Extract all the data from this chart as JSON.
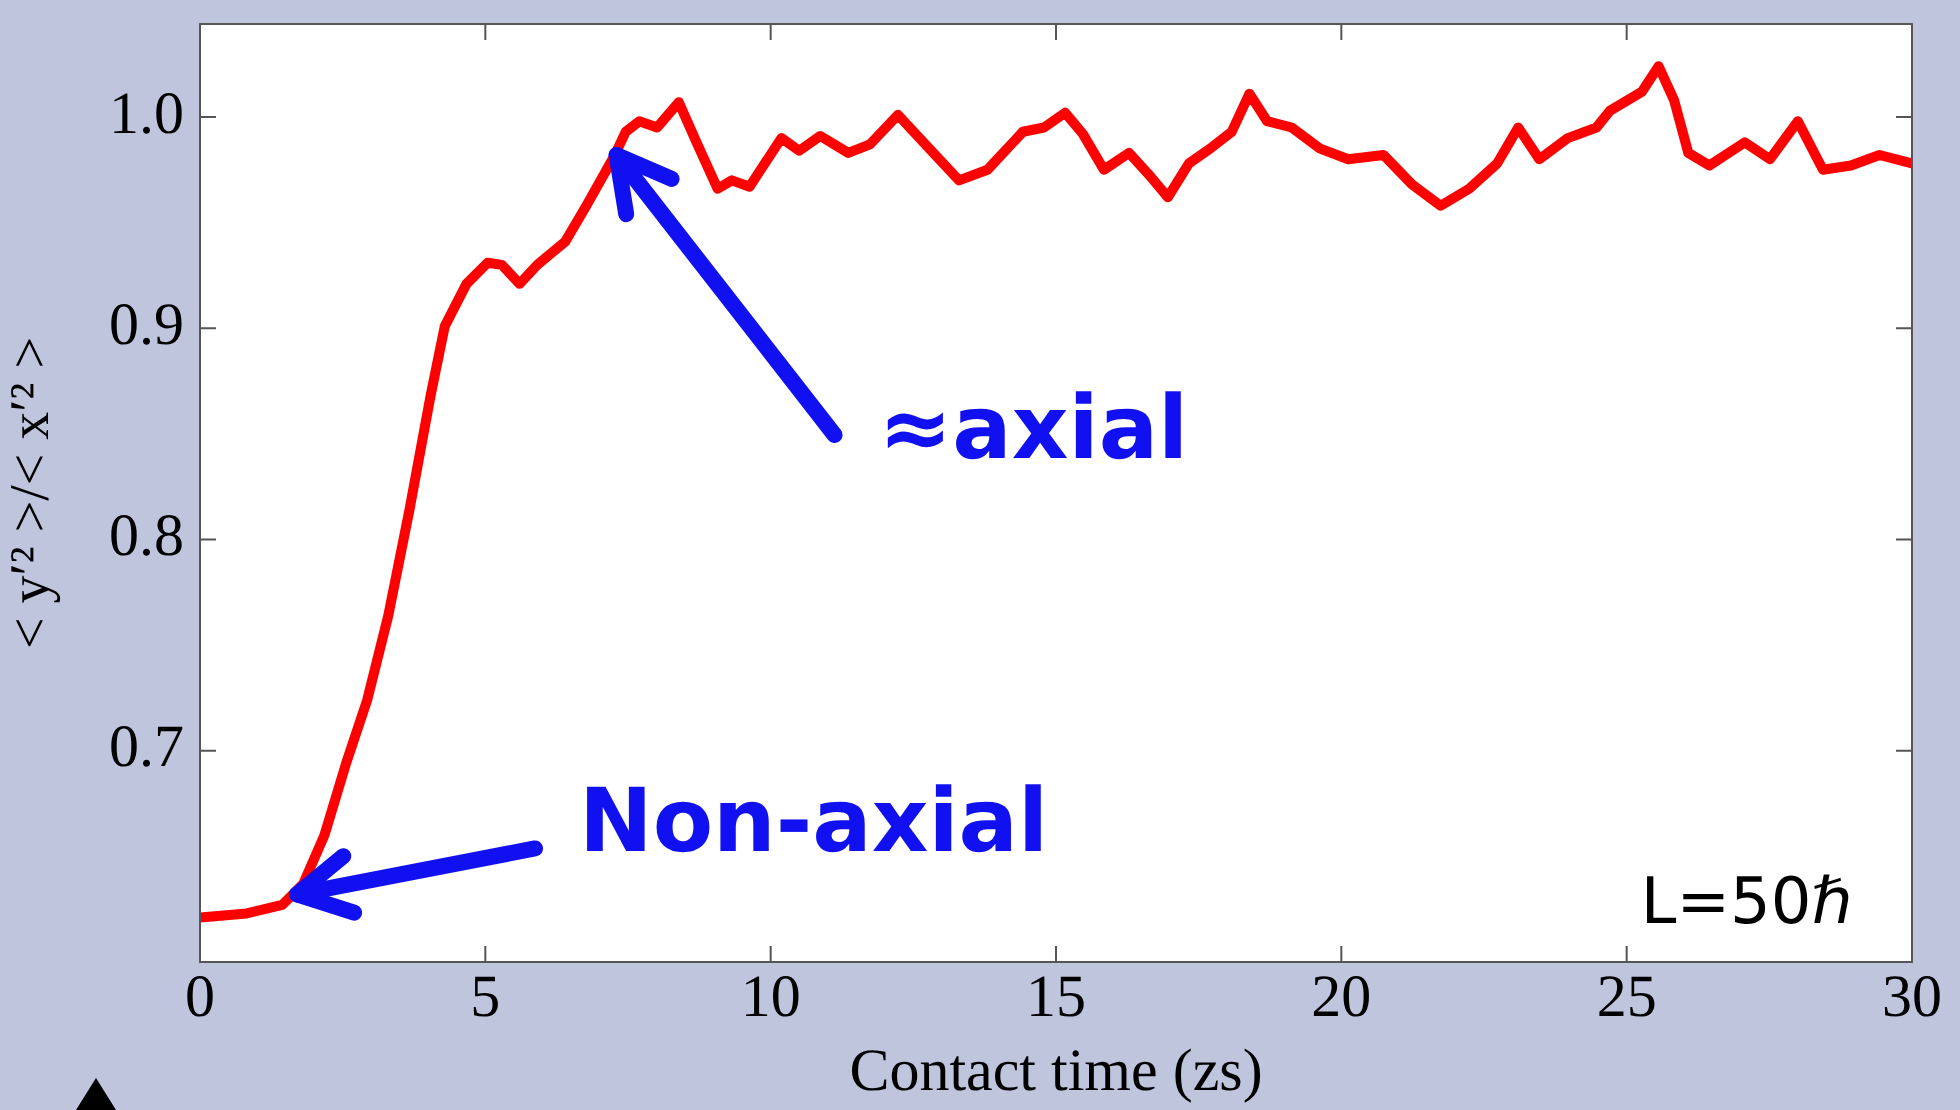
{
  "chart_data": {
    "type": "line",
    "xlabel": "Contact time (zs)",
    "ylabel": "< y′² >/< x′² >",
    "xlim": [
      0,
      30
    ],
    "xticks": [
      0,
      5,
      10,
      15,
      20,
      25,
      30
    ],
    "ylim": [
      0.6,
      1.044
    ],
    "yticks": [
      {
        "value": 0.7,
        "label": "0.7"
      },
      {
        "value": 0.8,
        "label": "0.8"
      },
      {
        "value": 0.9,
        "label": "0.9"
      },
      {
        "value": 1.0,
        "label": "1.0"
      }
    ],
    "grid": false,
    "legend": false,
    "marker": "none",
    "line_style": "solid",
    "series": [
      {
        "color": "#ff0000",
        "x": [
          0,
          0.82,
          1.44,
          1.81,
          2.18,
          2.56,
          2.93,
          3.3,
          3.67,
          4.04,
          4.29,
          4.67,
          5.04,
          5.29,
          5.6,
          5.91,
          6.4,
          6.77,
          7.27,
          7.46,
          7.7,
          8.01,
          8.39,
          8.7,
          9.07,
          9.32,
          9.63,
          10.19,
          10.5,
          10.87,
          11.36,
          11.74,
          12.23,
          12.85,
          13.3,
          13.8,
          14.42,
          14.79,
          15.16,
          15.47,
          15.84,
          16.28,
          16.65,
          16.96,
          17.33,
          17.7,
          18.08,
          18.39,
          18.7,
          19.13,
          19.63,
          20.12,
          20.74,
          21.24,
          21.74,
          22.24,
          22.73,
          23.1,
          23.47,
          23.97,
          24.47,
          24.71,
          25.27,
          25.56,
          25.83,
          26.08,
          26.45,
          27.07,
          27.51,
          28.0,
          28.44,
          28.93,
          29.43,
          30
        ],
        "values": [
          0.621,
          0.623,
          0.627,
          0.637,
          0.66,
          0.694,
          0.724,
          0.764,
          0.814,
          0.868,
          0.901,
          0.921,
          0.931,
          0.93,
          0.921,
          0.93,
          0.941,
          0.958,
          0.982,
          0.993,
          0.998,
          0.995,
          1.007,
          0.988,
          0.966,
          0.97,
          0.967,
          0.99,
          0.984,
          0.991,
          0.983,
          0.987,
          1.001,
          0.983,
          0.97,
          0.975,
          0.993,
          0.995,
          1.002,
          0.992,
          0.975,
          0.983,
          0.972,
          0.962,
          0.978,
          0.985,
          0.993,
          1.011,
          0.998,
          0.995,
          0.985,
          0.98,
          0.982,
          0.968,
          0.958,
          0.966,
          0.978,
          0.995,
          0.98,
          0.99,
          0.995,
          1.003,
          1.012,
          1.024,
          1.008,
          0.983,
          0.977,
          0.988,
          0.98,
          0.998,
          0.975,
          0.977,
          0.982,
          0.978
        ]
      }
    ],
    "annotations": [
      {
        "text": "≈axial",
        "x": 7.3,
        "y": 0.982
      },
      {
        "text": "Non-axial",
        "x": 1.7,
        "y": 0.632
      },
      "L=50ℏ"
    ]
  }
}
